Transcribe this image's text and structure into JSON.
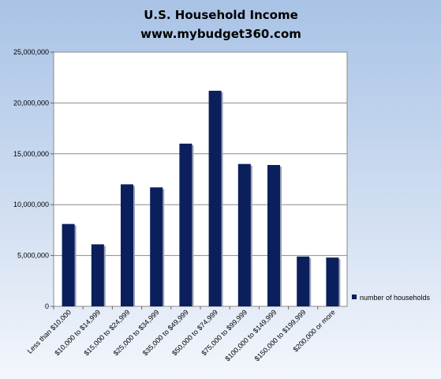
{
  "chart_data": {
    "type": "bar",
    "title": "U.S. Household Income",
    "subtitle": "www.mybudget360.com",
    "categories": [
      "Less than $10,000",
      "$10,000 to $14,999",
      "$15,000 to $24,999",
      "$25,000 to $34,999",
      "$35,000 to $49,999",
      "$50,000 to $74,999",
      "$75,000 to $99,999",
      "$100,000 to $149,999",
      "$150,000 to $199,999",
      "$200,000 or more"
    ],
    "series": [
      {
        "name": "number of households",
        "color": "#0b1f5c",
        "values": [
          8100000,
          6100000,
          12000000,
          11700000,
          16000000,
          21200000,
          14000000,
          13900000,
          4900000,
          4800000
        ]
      }
    ],
    "yticks": [
      "0",
      "5,000,000",
      "10,000,000",
      "15,000,000",
      "20,000,000",
      "25,000,000"
    ],
    "ylim": [
      0,
      25000000
    ],
    "grid": true,
    "legend_position": "right"
  }
}
